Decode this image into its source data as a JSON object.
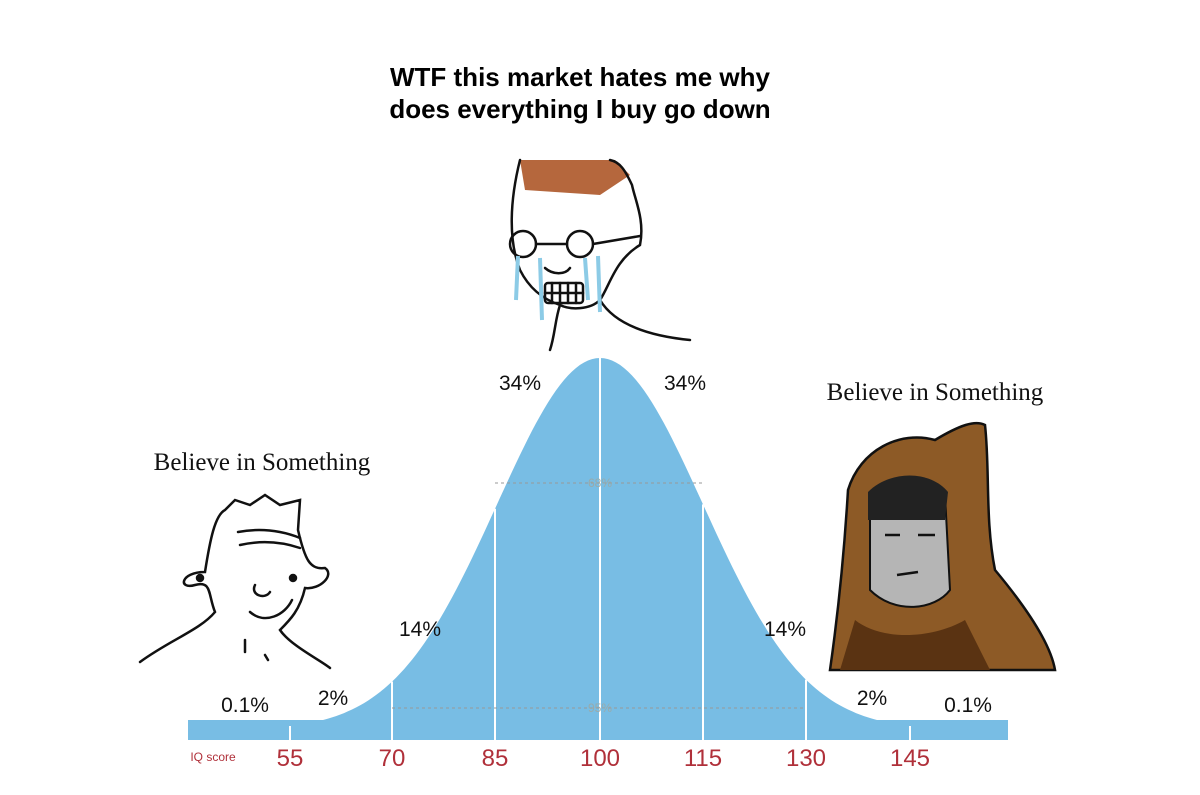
{
  "title": [
    "WTF this market hates me why",
    "does everything I buy go down"
  ],
  "left_caption": "Believe in Something",
  "right_caption": "Believe in Something",
  "curve": {
    "segment_labels": [
      "0.1%",
      "2%",
      "14%",
      "34%",
      "34%",
      "14%",
      "2%",
      "0.1%"
    ],
    "band_labels": [
      "68%",
      "95%"
    ],
    "axis_label": "IQ score",
    "scores": [
      "55",
      "70",
      "85",
      "100",
      "115",
      "130",
      "145"
    ]
  }
}
